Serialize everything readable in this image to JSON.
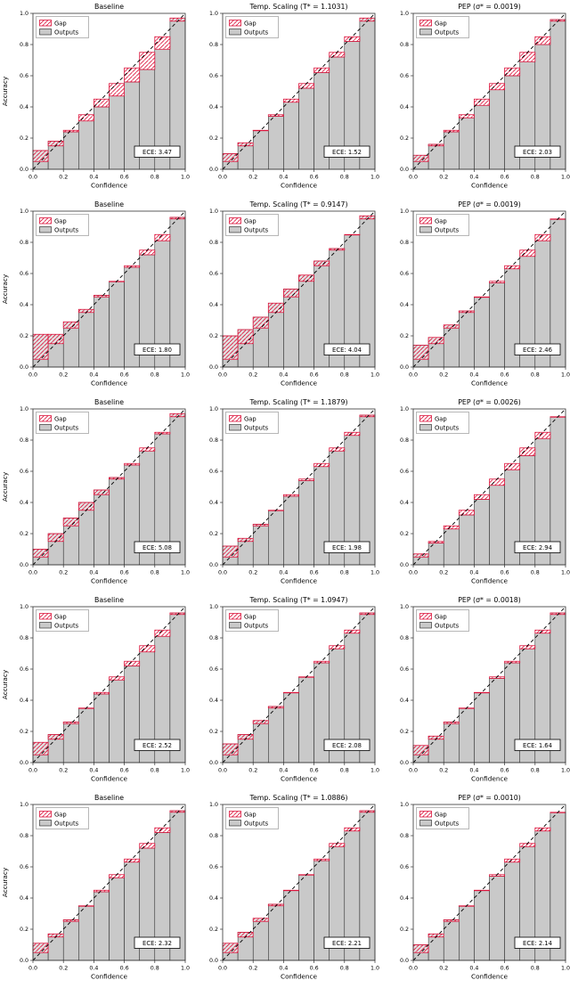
{
  "figure": {
    "xlabel": "Confidence",
    "ylabel": "Accuracy",
    "legend": [
      "Gap",
      "Outputs"
    ],
    "ece_prefix": "ECE: ",
    "xticks": [
      0.0,
      0.2,
      0.4,
      0.6,
      0.8,
      1.0
    ],
    "yticks": [
      0.0,
      0.2,
      0.4,
      0.6,
      0.8,
      1.0
    ],
    "xlim": [
      0,
      1
    ],
    "ylim": [
      0,
      1
    ],
    "colors": {
      "bar_fill": "#c9c9c9",
      "bar_edge": "#1a1a1a",
      "gap_edge": "#dc143c",
      "gap_hatch": "#dc143c",
      "diagonal": "#000000",
      "spine": "#333333"
    }
  },
  "chart_data": [
    {
      "type": "bar",
      "row": 1,
      "col": 1,
      "title": "Baseline",
      "ece": "3.47",
      "show_ylabel": true,
      "bin_centers": [
        0.05,
        0.15,
        0.25,
        0.35,
        0.45,
        0.55,
        0.65,
        0.75,
        0.85,
        0.95
      ],
      "accuracies": [
        0.12,
        0.18,
        0.24,
        0.31,
        0.4,
        0.47,
        0.56,
        0.64,
        0.77,
        0.97
      ]
    },
    {
      "type": "bar",
      "row": 1,
      "col": 2,
      "title": "Temp. Scaling (T* = 1.1031)",
      "ece": "1.52",
      "show_ylabel": false,
      "bin_centers": [
        0.05,
        0.15,
        0.25,
        0.35,
        0.45,
        0.55,
        0.65,
        0.75,
        0.85,
        0.95
      ],
      "accuracies": [
        0.1,
        0.17,
        0.25,
        0.34,
        0.43,
        0.52,
        0.62,
        0.72,
        0.82,
        0.97
      ]
    },
    {
      "type": "bar",
      "row": 1,
      "col": 3,
      "title": "PEP (σ* = 0.0019)",
      "ece": "2.03",
      "show_ylabel": false,
      "bin_centers": [
        0.05,
        0.15,
        0.25,
        0.35,
        0.45,
        0.55,
        0.65,
        0.75,
        0.85,
        0.95
      ],
      "accuracies": [
        0.09,
        0.16,
        0.24,
        0.33,
        0.41,
        0.51,
        0.6,
        0.69,
        0.8,
        0.96
      ]
    },
    {
      "type": "bar",
      "row": 2,
      "col": 1,
      "title": "Baseline",
      "ece": "1.80",
      "show_ylabel": true,
      "bin_centers": [
        0.05,
        0.15,
        0.25,
        0.35,
        0.45,
        0.55,
        0.65,
        0.75,
        0.85,
        0.95
      ],
      "accuracies": [
        0.21,
        0.21,
        0.29,
        0.37,
        0.46,
        0.55,
        0.64,
        0.72,
        0.81,
        0.96
      ]
    },
    {
      "type": "bar",
      "row": 2,
      "col": 2,
      "title": "Temp. Scaling (T* = 0.9147)",
      "ece": "4.04",
      "show_ylabel": false,
      "bin_centers": [
        0.05,
        0.15,
        0.25,
        0.35,
        0.45,
        0.55,
        0.65,
        0.75,
        0.85,
        0.95
      ],
      "accuracies": [
        0.2,
        0.24,
        0.32,
        0.41,
        0.5,
        0.59,
        0.68,
        0.76,
        0.85,
        0.97
      ]
    },
    {
      "type": "bar",
      "row": 2,
      "col": 3,
      "title": "PEP (σ* = 0.0019)",
      "ece": "2.46",
      "show_ylabel": false,
      "bin_centers": [
        0.05,
        0.15,
        0.25,
        0.35,
        0.45,
        0.55,
        0.65,
        0.75,
        0.85,
        0.95
      ],
      "accuracies": [
        0.14,
        0.19,
        0.27,
        0.36,
        0.45,
        0.54,
        0.63,
        0.71,
        0.81,
        0.95
      ]
    },
    {
      "type": "bar",
      "row": 3,
      "col": 1,
      "title": "Baseline",
      "ece": "5.08",
      "show_ylabel": true,
      "bin_centers": [
        0.05,
        0.15,
        0.25,
        0.35,
        0.45,
        0.55,
        0.65,
        0.75,
        0.85,
        0.95
      ],
      "accuracies": [
        0.1,
        0.2,
        0.3,
        0.4,
        0.48,
        0.56,
        0.64,
        0.73,
        0.84,
        0.97
      ]
    },
    {
      "type": "bar",
      "row": 3,
      "col": 2,
      "title": "Temp. Scaling (T* = 1.1879)",
      "ece": "1.98",
      "show_ylabel": false,
      "bin_centers": [
        0.05,
        0.15,
        0.25,
        0.35,
        0.45,
        0.55,
        0.65,
        0.75,
        0.85,
        0.95
      ],
      "accuracies": [
        0.12,
        0.17,
        0.26,
        0.35,
        0.44,
        0.54,
        0.63,
        0.73,
        0.83,
        0.96
      ]
    },
    {
      "type": "bar",
      "row": 3,
      "col": 3,
      "title": "PEP (σ* = 0.0026)",
      "ece": "2.94",
      "show_ylabel": false,
      "bin_centers": [
        0.05,
        0.15,
        0.25,
        0.35,
        0.45,
        0.55,
        0.65,
        0.75,
        0.85,
        0.95
      ],
      "accuracies": [
        0.07,
        0.14,
        0.23,
        0.32,
        0.42,
        0.51,
        0.61,
        0.7,
        0.81,
        0.95
      ]
    },
    {
      "type": "bar",
      "row": 4,
      "col": 1,
      "title": "Baseline",
      "ece": "2.52",
      "show_ylabel": true,
      "bin_centers": [
        0.05,
        0.15,
        0.25,
        0.35,
        0.45,
        0.55,
        0.65,
        0.75,
        0.85,
        0.95
      ],
      "accuracies": [
        0.13,
        0.18,
        0.26,
        0.35,
        0.44,
        0.53,
        0.62,
        0.71,
        0.81,
        0.96
      ]
    },
    {
      "type": "bar",
      "row": 4,
      "col": 2,
      "title": "Temp. Scaling (T* = 1.0947)",
      "ece": "2.08",
      "show_ylabel": false,
      "bin_centers": [
        0.05,
        0.15,
        0.25,
        0.35,
        0.45,
        0.55,
        0.65,
        0.75,
        0.85,
        0.95
      ],
      "accuracies": [
        0.12,
        0.18,
        0.27,
        0.36,
        0.45,
        0.55,
        0.64,
        0.73,
        0.83,
        0.96
      ]
    },
    {
      "type": "bar",
      "row": 4,
      "col": 3,
      "title": "PEP (σ* = 0.0018)",
      "ece": "1.64",
      "show_ylabel": false,
      "bin_centers": [
        0.05,
        0.15,
        0.25,
        0.35,
        0.45,
        0.55,
        0.65,
        0.75,
        0.85,
        0.95
      ],
      "accuracies": [
        0.11,
        0.17,
        0.26,
        0.35,
        0.45,
        0.54,
        0.64,
        0.73,
        0.83,
        0.96
      ]
    },
    {
      "type": "bar",
      "row": 5,
      "col": 1,
      "title": "Baseline",
      "ece": "2.32",
      "show_ylabel": true,
      "bin_centers": [
        0.05,
        0.15,
        0.25,
        0.35,
        0.45,
        0.55,
        0.65,
        0.75,
        0.85,
        0.95
      ],
      "accuracies": [
        0.11,
        0.17,
        0.26,
        0.35,
        0.44,
        0.53,
        0.63,
        0.72,
        0.82,
        0.96
      ]
    },
    {
      "type": "bar",
      "row": 5,
      "col": 2,
      "title": "Temp. Scaling (T* = 1.0886)",
      "ece": "2.21",
      "show_ylabel": false,
      "bin_centers": [
        0.05,
        0.15,
        0.25,
        0.35,
        0.45,
        0.55,
        0.65,
        0.75,
        0.85,
        0.95
      ],
      "accuracies": [
        0.11,
        0.18,
        0.27,
        0.36,
        0.45,
        0.55,
        0.64,
        0.73,
        0.83,
        0.96
      ]
    },
    {
      "type": "bar",
      "row": 5,
      "col": 3,
      "title": "PEP (σ* = 0.0010)",
      "ece": "2.14",
      "show_ylabel": false,
      "bin_centers": [
        0.05,
        0.15,
        0.25,
        0.35,
        0.45,
        0.55,
        0.65,
        0.75,
        0.85,
        0.95
      ],
      "accuracies": [
        0.1,
        0.17,
        0.26,
        0.35,
        0.45,
        0.54,
        0.63,
        0.73,
        0.83,
        0.95
      ]
    }
  ]
}
